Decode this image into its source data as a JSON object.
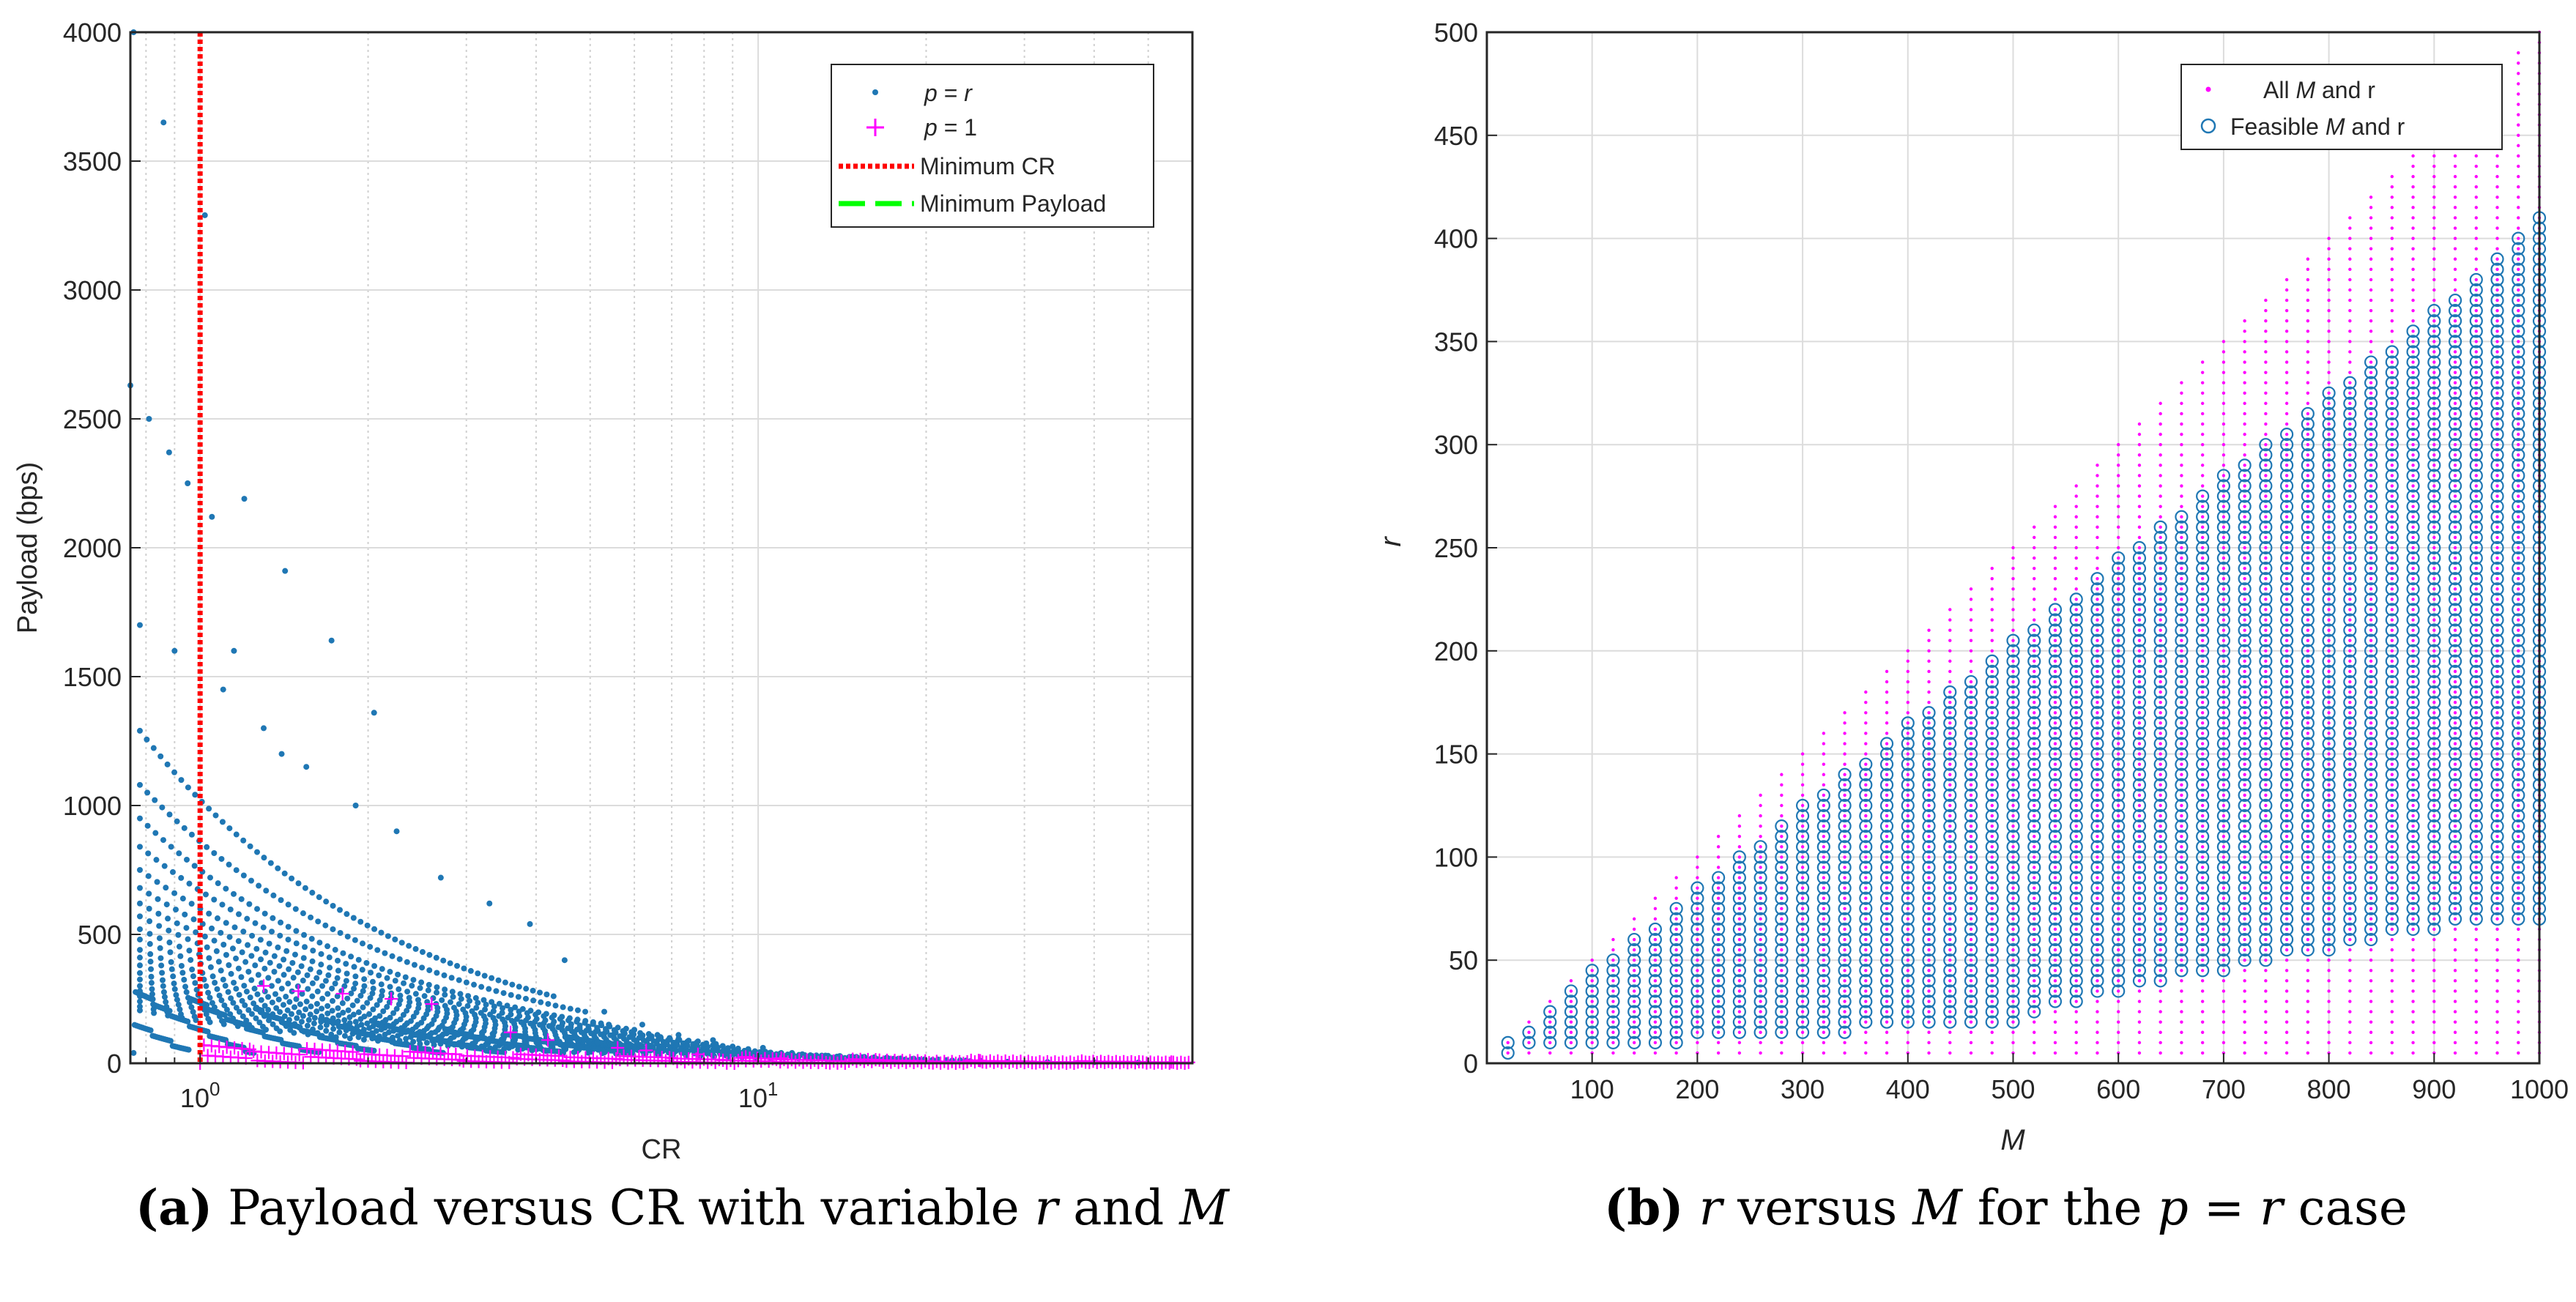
{
  "chart_data": [
    {
      "type": "scatter",
      "panel": "a",
      "title": "",
      "xlabel": "CR",
      "ylabel": "Payload (bps)",
      "xscale": "log",
      "xlim": [
        0.75,
        60
      ],
      "ylim": [
        0,
        4000
      ],
      "xticks": [
        1,
        10
      ],
      "xtick_labels": [
        {
          "base": "10",
          "exp": "0"
        },
        {
          "base": "10",
          "exp": "1"
        }
      ],
      "yticks": [
        0,
        500,
        1000,
        1500,
        2000,
        2500,
        3000,
        3500,
        4000
      ],
      "ytick_labels": [
        "0",
        "500",
        "1000",
        "1500",
        "2000",
        "2500",
        "3000",
        "3500",
        "4000"
      ],
      "grid": true,
      "legend_position": "top-right",
      "legend": [
        {
          "key": "p_eq_r",
          "prefix": "p",
          "mid": " = ",
          "suffix": "r",
          "color": "#1f77b4",
          "marker": "dot"
        },
        {
          "key": "p_eq_1",
          "prefix": "p",
          "mid": " = 1",
          "suffix": "",
          "color": "#ff00ff",
          "marker": "plus"
        },
        {
          "key": "min_cr",
          "label": "Minimum CR",
          "color": "#ff0000",
          "style": "dotted"
        },
        {
          "key": "min_payload",
          "label": "Minimum Payload",
          "color": "#00ff00",
          "style": "dashed"
        }
      ],
      "minimum_cr": 1.0,
      "series": [
        {
          "name": "p = r",
          "color": "#1f77b4",
          "points": [
            [
              0.76,
              4000
            ],
            [
              0.86,
              3650
            ],
            [
              1.02,
              3290
            ],
            [
              0.75,
              2630
            ],
            [
              0.81,
              2500
            ],
            [
              0.88,
              2370
            ],
            [
              0.95,
              2250
            ],
            [
              1.05,
              2120
            ],
            [
              1.2,
              2190
            ],
            [
              1.42,
              1910
            ],
            [
              1.72,
              1640
            ],
            [
              2.05,
              1360
            ],
            [
              0.78,
              1700
            ],
            [
              0.9,
              1600
            ],
            [
              1.1,
              1450
            ],
            [
              1.3,
              1300
            ],
            [
              1.55,
              1150
            ],
            [
              1.9,
              1000
            ],
            [
              2.25,
              900
            ],
            [
              2.7,
              720
            ],
            [
              3.3,
              620
            ],
            [
              3.9,
              540
            ],
            [
              4.5,
              400
            ],
            [
              1.15,
              1600
            ],
            [
              1.4,
              1200
            ],
            [
              5.3,
              200
            ],
            [
              6.2,
              150
            ],
            [
              7.2,
              110
            ],
            [
              8.3,
              90
            ],
            [
              10.2,
              60
            ],
            [
              11.5,
              40
            ],
            [
              13.2,
              30
            ],
            [
              15.0,
              25
            ],
            [
              17.5,
              18
            ],
            [
              20.5,
              12
            ],
            [
              24.0,
              8
            ],
            [
              28.0,
              6
            ],
            [
              33.0,
              5
            ],
            [
              40.0,
              4
            ],
            [
              48.0,
              3
            ]
          ],
          "families": [
            {
              "start_cr": 0.78,
              "start_payload": 1290,
              "end_cr": 4.3,
              "end_payload": 260
            },
            {
              "start_cr": 0.78,
              "start_payload": 1080,
              "end_cr": 4.9,
              "end_payload": 200
            },
            {
              "start_cr": 0.78,
              "start_payload": 950,
              "end_cr": 5.4,
              "end_payload": 150
            },
            {
              "start_cr": 0.78,
              "start_payload": 840,
              "end_cr": 6.0,
              "end_payload": 130
            },
            {
              "start_cr": 0.78,
              "start_payload": 750,
              "end_cr": 6.6,
              "end_payload": 110
            },
            {
              "start_cr": 0.78,
              "start_payload": 680,
              "end_cr": 7.2,
              "end_payload": 95
            },
            {
              "start_cr": 0.78,
              "start_payload": 620,
              "end_cr": 7.8,
              "end_payload": 85
            },
            {
              "start_cr": 0.78,
              "start_payload": 570,
              "end_cr": 8.4,
              "end_payload": 75
            },
            {
              "start_cr": 0.78,
              "start_payload": 520,
              "end_cr": 9.0,
              "end_payload": 65
            },
            {
              "start_cr": 0.78,
              "start_payload": 480,
              "end_cr": 9.6,
              "end_payload": 55
            },
            {
              "start_cr": 0.78,
              "start_payload": 440,
              "end_cr": 10.3,
              "end_payload": 45
            },
            {
              "start_cr": 0.78,
              "start_payload": 410,
              "end_cr": 11.0,
              "end_payload": 40
            },
            {
              "start_cr": 0.78,
              "start_payload": 380,
              "end_cr": 12.0,
              "end_payload": 35
            },
            {
              "start_cr": 0.78,
              "start_payload": 350,
              "end_cr": 13.0,
              "end_payload": 30
            },
            {
              "start_cr": 0.78,
              "start_payload": 325,
              "end_cr": 14.0,
              "end_payload": 28
            },
            {
              "start_cr": 0.78,
              "start_payload": 300,
              "end_cr": 15.5,
              "end_payload": 25
            },
            {
              "start_cr": 0.78,
              "start_payload": 280,
              "end_cr": 17.0,
              "end_payload": 22
            },
            {
              "start_cr": 0.78,
              "start_payload": 260,
              "end_cr": 19.0,
              "end_payload": 18
            },
            {
              "start_cr": 0.78,
              "start_payload": 240,
              "end_cr": 21.0,
              "end_payload": 15
            },
            {
              "start_cr": 0.78,
              "start_payload": 220,
              "end_cr": 23.0,
              "end_payload": 12
            },
            {
              "start_cr": 0.78,
              "start_payload": 205,
              "end_cr": 25.0,
              "end_payload": 10
            }
          ]
        },
        {
          "name": "p = 1",
          "color": "#ff00ff",
          "points": [
            [
              1.5,
              280
            ],
            [
              1.8,
              270
            ],
            [
              2.2,
              250
            ],
            [
              1.3,
              300
            ],
            [
              2.6,
              230
            ],
            [
              3.6,
              120
            ],
            [
              4.2,
              90
            ],
            [
              5.6,
              60
            ],
            [
              6.3,
              50
            ],
            [
              7.8,
              35
            ],
            [
              9.5,
              25
            ],
            [
              11.0,
              20
            ],
            [
              25.0,
              10
            ],
            [
              55.0,
              5
            ]
          ],
          "band_payload_max": 80,
          "band_cr_range": [
            1.0,
            60
          ]
        }
      ]
    },
    {
      "type": "scatter",
      "panel": "b",
      "title": "",
      "xlabel": "M",
      "ylabel": "r",
      "xlim": [
        0,
        1000
      ],
      "ylim": [
        0,
        500
      ],
      "xticks": [
        100,
        200,
        300,
        400,
        500,
        600,
        700,
        800,
        900,
        1000
      ],
      "xtick_labels": [
        "100",
        "200",
        "300",
        "400",
        "500",
        "600",
        "700",
        "800",
        "900",
        "1000"
      ],
      "yticks": [
        0,
        50,
        100,
        150,
        200,
        250,
        300,
        350,
        400,
        450,
        500
      ],
      "ytick_labels": [
        "0",
        "50",
        "100",
        "150",
        "200",
        "250",
        "300",
        "350",
        "400",
        "450",
        "500"
      ],
      "grid": true,
      "legend_position": "top-right",
      "legend": [
        {
          "key": "all",
          "prefix": "All ",
          "mid": "M",
          "suffix": " and  r",
          "color": "#ff00ff",
          "marker": "dot"
        },
        {
          "key": "feasible",
          "prefix": "Feasible ",
          "mid": "M",
          "suffix": " and  r",
          "color": "#1f77b4",
          "marker": "circle"
        }
      ],
      "series": [
        {
          "name": "All M and r",
          "color": "#ff00ff",
          "M_values_step": 20,
          "M_range": [
            20,
            1000
          ],
          "r_step": 5,
          "r_min": 5,
          "r_max_rule": "r <= M/2"
        },
        {
          "name": "Feasible M and r",
          "color": "#1f77b4",
          "M_values_step": 20,
          "M_range": [
            20,
            1000
          ],
          "upper_r_by_M": [
            [
              20,
              10
            ],
            [
              100,
              45
            ],
            [
              200,
              85
            ],
            [
              300,
              125
            ],
            [
              400,
              165
            ],
            [
              500,
              205
            ],
            [
              600,
              245
            ],
            [
              700,
              285
            ],
            [
              800,
              325
            ],
            [
              900,
              365
            ],
            [
              1000,
              410
            ]
          ],
          "lower_r_by_M": [
            [
              20,
              5
            ],
            [
              500,
              20
            ],
            [
              600,
              35
            ],
            [
              700,
              45
            ],
            [
              800,
              55
            ],
            [
              900,
              65
            ],
            [
              1000,
              70
            ]
          ]
        }
      ]
    }
  ],
  "captions": {
    "a": {
      "label": "(a)",
      "text_before": " Payload versus CR with variable ",
      "var1": "r",
      "text_mid": " and ",
      "var2": "M"
    },
    "b": {
      "label": "(b)",
      "var1": "r",
      "text_mid": " versus ",
      "var2": "M",
      "text_after": " for the ",
      "var3": "p",
      "text_eq": " = ",
      "var4": "r",
      "text_end": " case"
    }
  }
}
